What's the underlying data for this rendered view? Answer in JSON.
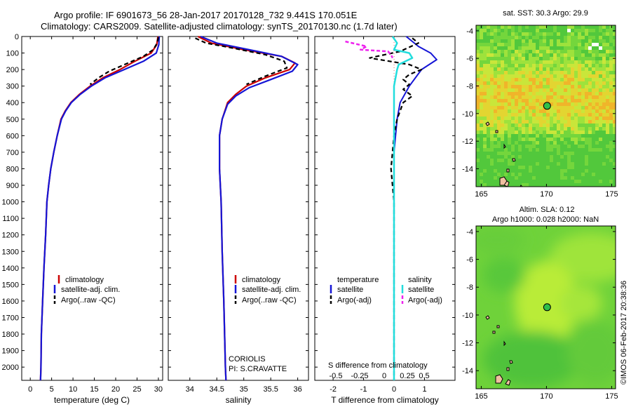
{
  "title": {
    "line1": "Argo profile: IF 6901673_56 28-Jan-2017 20170128_732 9.441S 170.051E",
    "line2": "Climatology: CARS2009. Satellite-adjusted climatology: synTS_20170130.nc (1.7d later)"
  },
  "timestamp": "©IMOS 06-Feb-2017 20:38:36",
  "colors": {
    "climatology": "#cc0000",
    "satellite": "#1515d6",
    "argo": "#000000",
    "salinity_sat": "#22dddd",
    "salinity_argo": "#ee22ee"
  },
  "chart_data": [
    {
      "name": "temperature-profile",
      "type": "line",
      "xlabel": "temperature (deg C)",
      "ylabel": "",
      "xlim": [
        -2,
        31
      ],
      "ylim": [
        2080,
        0
      ],
      "xticks": [
        0,
        5,
        10,
        15,
        20,
        25,
        30
      ],
      "yticks": [
        0,
        100,
        200,
        300,
        400,
        500,
        600,
        700,
        800,
        900,
        1000,
        1100,
        1200,
        1300,
        1400,
        1500,
        1600,
        1700,
        1800,
        1900,
        2000
      ],
      "legend": [
        "climatology",
        "satellite-adj. clim.",
        "Argo(..raw -QC)"
      ],
      "series": [
        {
          "name": "climatology",
          "points": [
            [
              29.9,
              0
            ],
            [
              29.6,
              50
            ],
            [
              28.3,
              100
            ],
            [
              24.5,
              150
            ],
            [
              21,
              200
            ],
            [
              17,
              250
            ],
            [
              14,
              300
            ],
            [
              11.5,
              350
            ],
            [
              9.5,
              400
            ],
            [
              8.2,
              450
            ],
            [
              7.2,
              500
            ],
            [
              6.3,
              600
            ],
            [
              5.5,
              700
            ],
            [
              4.8,
              800
            ],
            [
              4.3,
              900
            ],
            [
              3.9,
              1000
            ],
            [
              3.6,
              1200
            ],
            [
              3.2,
              1400
            ],
            [
              2.9,
              1600
            ],
            [
              2.6,
              1800
            ],
            [
              2.5,
              2000
            ],
            [
              2.4,
              2080
            ]
          ]
        },
        {
          "name": "satellite-adj. clim.",
          "points": [
            [
              30.2,
              0
            ],
            [
              30.1,
              50
            ],
            [
              29.5,
              100
            ],
            [
              26.5,
              150
            ],
            [
              22,
              200
            ],
            [
              17.5,
              250
            ],
            [
              14.3,
              300
            ],
            [
              11.7,
              350
            ],
            [
              9.6,
              400
            ],
            [
              8.3,
              450
            ],
            [
              7.3,
              500
            ],
            [
              6.3,
              600
            ],
            [
              5.5,
              700
            ],
            [
              4.8,
              800
            ],
            [
              4.3,
              900
            ],
            [
              3.9,
              1000
            ],
            [
              3.6,
              1200
            ],
            [
              3.2,
              1400
            ],
            [
              2.9,
              1600
            ],
            [
              2.6,
              1800
            ],
            [
              2.5,
              2000
            ],
            [
              2.4,
              2080
            ]
          ]
        },
        {
          "name": "Argo(..raw -QC)",
          "points": [
            [
              30,
              5
            ],
            [
              29.7,
              40
            ],
            [
              28.8,
              80
            ],
            [
              26.5,
              120
            ],
            [
              22.5,
              165
            ],
            [
              18.5,
              210
            ],
            [
              16,
              250
            ],
            [
              14,
              290
            ]
          ]
        }
      ]
    },
    {
      "name": "salinity-profile",
      "type": "line",
      "xlabel": "salinity",
      "ylabel": "",
      "xlim": [
        33.6,
        36.2
      ],
      "ylim": [
        2080,
        0
      ],
      "xticks": [
        34,
        34.5,
        35,
        35.5,
        36
      ],
      "ticklabels": [
        "34",
        "34.5",
        "35",
        "35.5",
        "36"
      ],
      "legend": [
        "climatology",
        "satellite-adj. clim.",
        "Argo(..raw -QC)"
      ],
      "annotation": [
        "CORIOLIS",
        "PI: S.CRAVATTE"
      ],
      "series": [
        {
          "name": "climatology",
          "points": [
            [
              34.15,
              0
            ],
            [
              34.4,
              40
            ],
            [
              35,
              80
            ],
            [
              35.7,
              120
            ],
            [
              35.95,
              160
            ],
            [
              35.85,
              200
            ],
            [
              35.4,
              250
            ],
            [
              35.05,
              300
            ],
            [
              34.85,
              350
            ],
            [
              34.7,
              400
            ],
            [
              34.6,
              500
            ],
            [
              34.55,
              600
            ],
            [
              34.55,
              800
            ],
            [
              34.58,
              1000
            ],
            [
              34.6,
              1300
            ],
            [
              34.63,
              1600
            ],
            [
              34.66,
              2000
            ],
            [
              34.67,
              2080
            ]
          ]
        },
        {
          "name": "satellite-adj. clim.",
          "points": [
            [
              34.2,
              0
            ],
            [
              34.5,
              40
            ],
            [
              35.1,
              80
            ],
            [
              35.7,
              120
            ],
            [
              36,
              170
            ],
            [
              35.9,
              210
            ],
            [
              35.5,
              260
            ],
            [
              35.1,
              310
            ],
            [
              34.85,
              360
            ],
            [
              34.7,
              410
            ],
            [
              34.6,
              500
            ],
            [
              34.55,
              600
            ],
            [
              34.55,
              800
            ],
            [
              34.58,
              1000
            ],
            [
              34.6,
              1300
            ],
            [
              34.63,
              1600
            ],
            [
              34.66,
              2000
            ],
            [
              34.67,
              2080
            ]
          ]
        },
        {
          "name": "Argo(..raw -QC)",
          "points": [
            [
              34.1,
              10
            ],
            [
              34.3,
              40
            ],
            [
              34.8,
              70
            ],
            [
              35.4,
              110
            ],
            [
              35.75,
              150
            ],
            [
              35.8,
              190
            ],
            [
              35.4,
              240
            ],
            [
              35.05,
              290
            ]
          ]
        }
      ]
    },
    {
      "name": "difference-profile",
      "type": "line",
      "xlabel": "T difference from climatology",
      "xlabel_top": "S difference from climatology",
      "xlim": [
        -2.6,
        2.0
      ],
      "ylim": [
        2080,
        0
      ],
      "xticks": [
        -2,
        -1,
        0,
        1
      ],
      "xtick_labels_T": [
        "-2",
        "-1",
        "0",
        "1"
      ],
      "xtick_labels_S": [
        "-0.5",
        "-0.25",
        "0",
        "0.25",
        "0.5"
      ],
      "legend_left": {
        "header": "temperature",
        "items": [
          "satellite",
          "Argo(-adj)"
        ]
      },
      "legend_right": {
        "header": "salinity",
        "items": [
          "satellite",
          "Argo(-adj)"
        ]
      },
      "series": [
        {
          "name": "temperature satellite",
          "points": [
            [
              0.4,
              0
            ],
            [
              0.8,
              60
            ],
            [
              1.2,
              100
            ],
            [
              1.4,
              140
            ],
            [
              0.9,
              200
            ],
            [
              0.5,
              300
            ],
            [
              0.2,
              400
            ],
            [
              0.1,
              500
            ],
            [
              0,
              700
            ],
            [
              0,
              1000
            ],
            [
              0,
              1500
            ],
            [
              0,
              2080
            ]
          ]
        },
        {
          "name": "temperature Argo(-adj)",
          "points": [
            [
              0.6,
              10
            ],
            [
              0.8,
              40
            ],
            [
              0.2,
              90
            ],
            [
              -0.8,
              130
            ],
            [
              0.5,
              170
            ],
            [
              0.9,
              200
            ],
            [
              0.5,
              230
            ],
            [
              0.3,
              260
            ],
            [
              0.5,
              290
            ],
            [
              0.3,
              320
            ],
            [
              0.6,
              360
            ],
            [
              0.3,
              400
            ],
            [
              0.2,
              450
            ],
            [
              0.1,
              500
            ],
            [
              0,
              600
            ],
            [
              -0.1,
              800
            ],
            [
              0,
              1000
            ],
            [
              0,
              1500
            ],
            [
              0,
              2000
            ],
            [
              0,
              2080
            ]
          ]
        },
        {
          "name": "salinity satellite",
          "points": [
            [
              -0.05,
              0
            ],
            [
              0.1,
              40
            ],
            [
              0,
              80
            ],
            [
              0.5,
              100
            ],
            [
              0.6,
              130
            ],
            [
              0.15,
              170
            ],
            [
              0.1,
              200
            ],
            [
              0,
              300
            ],
            [
              0,
              600
            ],
            [
              0,
              1000
            ],
            [
              0,
              2080
            ]
          ]
        },
        {
          "name": "salinity Argo(-adj)",
          "points": [
            [
              -1.6,
              30
            ],
            [
              -0.9,
              60
            ],
            [
              -1.1,
              80
            ],
            [
              -0.2,
              90
            ],
            [
              -0.1,
              110
            ],
            [
              -0.05,
              130
            ]
          ]
        }
      ]
    },
    {
      "name": "sst-map",
      "type": "heatmap",
      "title": "sat. SST: 30.3 Argo: 29.9",
      "xlim": [
        164.6,
        175.3
      ],
      "ylim": [
        -15.3,
        -3.6
      ],
      "xticks": [
        165,
        170,
        175
      ],
      "yticks": [
        -4,
        -6,
        -8,
        -10,
        -12,
        -14
      ],
      "marker": [
        170.05,
        -9.44
      ]
    },
    {
      "name": "sla-map",
      "type": "heatmap",
      "title": "Altim. SLA: 0.12",
      "subtitle": "Argo h1000: 0.028 h2000: NaN",
      "xlim": [
        164.6,
        175.3
      ],
      "ylim": [
        -15.3,
        -3.6
      ],
      "xticks": [
        165,
        170,
        175
      ],
      "yticks": [
        -4,
        -6,
        -8,
        -10,
        -12,
        -14
      ],
      "marker": [
        170.05,
        -9.44
      ]
    }
  ]
}
